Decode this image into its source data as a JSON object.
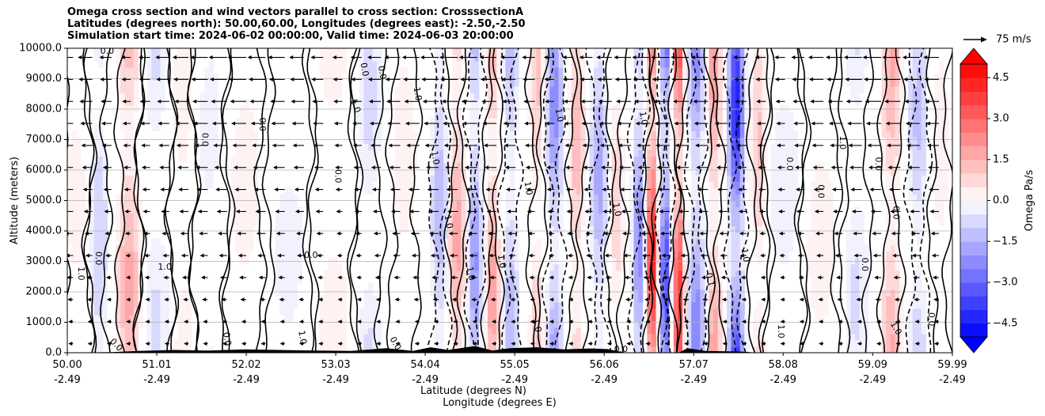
{
  "chart_data": {
    "type": "heatmap",
    "title_lines": [
      "Omega cross section and wind vectors parallel to cross section: CrosssectionA",
      "Latitudes (degrees north): 50.00,60.00, Longitudes (degrees east): -2.50,-2.50",
      "Simulation start time: 2024-06-02 00:00:00, Valid time: 2024-06-03 20:00:00"
    ],
    "ylabel": "Altitude (meters)",
    "xlabel_lines": [
      "Latitude (degrees N)",
      "Longitude (degrees E)"
    ],
    "xlim": [
      50.0,
      59.99
    ],
    "ylim": [
      0,
      10000
    ],
    "yticks": [
      {
        "value": 0,
        "label": "0.0"
      },
      {
        "value": 1000,
        "label": "1000.0"
      },
      {
        "value": 2000,
        "label": "2000.0"
      },
      {
        "value": 3000,
        "label": "3000.0"
      },
      {
        "value": 4000,
        "label": "4000.0"
      },
      {
        "value": 5000,
        "label": "5000.0"
      },
      {
        "value": 6000,
        "label": "6000.0"
      },
      {
        "value": 7000,
        "label": "7000.0"
      },
      {
        "value": 8000,
        "label": "8000.0"
      },
      {
        "value": 9000,
        "label": "9000.0"
      },
      {
        "value": 10000,
        "label": "10000.0"
      }
    ],
    "xticks": [
      {
        "value": 50.0,
        "lat": "50.00",
        "lon": "-2.49"
      },
      {
        "value": 51.01,
        "lat": "51.01",
        "lon": "-2.49"
      },
      {
        "value": 52.02,
        "lat": "52.02",
        "lon": "-2.49"
      },
      {
        "value": 53.03,
        "lat": "53.03",
        "lon": "-2.49"
      },
      {
        "value": 54.04,
        "lat": "54.04",
        "lon": "-2.49"
      },
      {
        "value": 55.05,
        "lat": "55.05",
        "lon": "-2.49"
      },
      {
        "value": 56.06,
        "lat": "56.06",
        "lon": "-2.49"
      },
      {
        "value": 57.07,
        "lat": "57.07",
        "lon": "-2.49"
      },
      {
        "value": 58.08,
        "lat": "58.08",
        "lon": "-2.49"
      },
      {
        "value": 59.09,
        "lat": "59.09",
        "lon": "-2.49"
      },
      {
        "value": 59.99,
        "lat": "59.99",
        "lon": "-2.49"
      }
    ],
    "grid": true,
    "colorbar": {
      "label": "Omega Pa/s",
      "range": [
        -5.0,
        5.0
      ],
      "ticks": [
        {
          "value": 4.5,
          "label": "4.5"
        },
        {
          "value": 3.0,
          "label": "3.0"
        },
        {
          "value": 1.5,
          "label": "1.5"
        },
        {
          "value": 0.0,
          "label": "0.0"
        },
        {
          "value": -1.5,
          "label": "−1.5"
        },
        {
          "value": -3.0,
          "label": "−3.0"
        },
        {
          "value": -4.5,
          "label": "−4.5"
        }
      ],
      "levels": 20,
      "extend": "both",
      "colormap": "bwr",
      "neg_color": "#0000ff",
      "pos_color": "#ff0000",
      "mid_color": "#ffffff"
    },
    "quiver_key": {
      "label": "75 m/s",
      "value": 75
    },
    "omega_bands": [
      {
        "lat": 50.1,
        "value": 0.4,
        "width": 0.15
      },
      {
        "lat": 50.35,
        "value": -1.0,
        "width": 0.1
      },
      {
        "lat": 50.7,
        "value": 1.8,
        "width": 0.12
      },
      {
        "lat": 51.0,
        "value": -0.6,
        "width": 0.2
      },
      {
        "lat": 51.3,
        "value": 0.6,
        "width": 0.15
      },
      {
        "lat": 51.6,
        "value": -0.4,
        "width": 0.2
      },
      {
        "lat": 52.0,
        "value": 0.5,
        "width": 0.2
      },
      {
        "lat": 52.5,
        "value": -0.4,
        "width": 0.25
      },
      {
        "lat": 53.0,
        "value": 0.4,
        "width": 0.25
      },
      {
        "lat": 53.4,
        "value": -0.7,
        "width": 0.15
      },
      {
        "lat": 53.8,
        "value": 0.5,
        "width": 0.15
      },
      {
        "lat": 54.2,
        "value": -1.5,
        "width": 0.08
      },
      {
        "lat": 54.4,
        "value": 1.8,
        "width": 0.08
      },
      {
        "lat": 54.6,
        "value": -2.2,
        "width": 0.07
      },
      {
        "lat": 54.8,
        "value": 2.0,
        "width": 0.07
      },
      {
        "lat": 55.0,
        "value": -1.4,
        "width": 0.08
      },
      {
        "lat": 55.3,
        "value": 1.2,
        "width": 0.07
      },
      {
        "lat": 55.5,
        "value": -2.4,
        "width": 0.08
      },
      {
        "lat": 55.75,
        "value": 1.5,
        "width": 0.07
      },
      {
        "lat": 56.0,
        "value": -1.8,
        "width": 0.08
      },
      {
        "lat": 56.2,
        "value": 0.8,
        "width": 0.08
      },
      {
        "lat": 56.45,
        "value": -2.5,
        "width": 0.06
      },
      {
        "lat": 56.6,
        "value": 5.0,
        "width": 0.05
      },
      {
        "lat": 56.75,
        "value": -4.0,
        "width": 0.05
      },
      {
        "lat": 56.9,
        "value": 4.5,
        "width": 0.05
      },
      {
        "lat": 57.1,
        "value": -2.5,
        "width": 0.08
      },
      {
        "lat": 57.3,
        "value": 2.0,
        "width": 0.07
      },
      {
        "lat": 57.55,
        "value": -4.5,
        "width": 0.08
      },
      {
        "lat": 57.8,
        "value": 1.2,
        "width": 0.08
      },
      {
        "lat": 58.1,
        "value": -0.5,
        "width": 0.2
      },
      {
        "lat": 58.5,
        "value": 0.5,
        "width": 0.2
      },
      {
        "lat": 58.9,
        "value": -0.6,
        "width": 0.15
      },
      {
        "lat": 59.3,
        "value": 1.6,
        "width": 0.1
      },
      {
        "lat": 59.6,
        "value": -1.2,
        "width": 0.1
      },
      {
        "lat": 59.85,
        "value": 0.5,
        "width": 0.1
      }
    ],
    "contour_labels": [
      {
        "lat": 50.45,
        "alt": 9900,
        "text": "0.0",
        "rot": 0
      },
      {
        "lat": 51.1,
        "alt": 2800,
        "text": "1.0",
        "rot": 0
      },
      {
        "lat": 52.75,
        "alt": 3200,
        "text": "0.0",
        "rot": 0
      },
      {
        "lat": 50.15,
        "alt": 2600,
        "text": "1.0",
        "rot": 90
      },
      {
        "lat": 50.35,
        "alt": 3100,
        "text": "0.0",
        "rot": 90
      },
      {
        "lat": 51.55,
        "alt": 7000,
        "text": "0.0",
        "rot": 90
      },
      {
        "lat": 52.2,
        "alt": 7500,
        "text": "0.0",
        "rot": 90
      },
      {
        "lat": 53.05,
        "alt": 5800,
        "text": "0.0",
        "rot": 90
      },
      {
        "lat": 53.25,
        "alt": 8100,
        "text": "1.0",
        "rot": 70
      },
      {
        "lat": 53.35,
        "alt": 9300,
        "text": "0.0",
        "rot": 80
      },
      {
        "lat": 53.55,
        "alt": 9200,
        "text": "0.0",
        "rot": 80
      },
      {
        "lat": 53.95,
        "alt": 8500,
        "text": "1.0",
        "rot": 80
      },
      {
        "lat": 54.15,
        "alt": 6400,
        "text": "1.0",
        "rot": 80
      },
      {
        "lat": 54.3,
        "alt": 4300,
        "text": "1.0",
        "rot": 80
      },
      {
        "lat": 54.55,
        "alt": 2600,
        "text": "1.0",
        "rot": 80
      },
      {
        "lat": 54.9,
        "alt": 3000,
        "text": "1.0",
        "rot": 80
      },
      {
        "lat": 55.2,
        "alt": 5400,
        "text": "1.0",
        "rot": 80
      },
      {
        "lat": 55.55,
        "alt": 7800,
        "text": "1.0",
        "rot": 80
      },
      {
        "lat": 56.2,
        "alt": 4700,
        "text": "1.0",
        "rot": 80
      },
      {
        "lat": 56.5,
        "alt": 7700,
        "text": "1.0",
        "rot": 80
      },
      {
        "lat": 57.25,
        "alt": 2400,
        "text": "0.1",
        "rot": 80
      },
      {
        "lat": 57.65,
        "alt": 3200,
        "text": "1.0",
        "rot": 80
      },
      {
        "lat": 58.15,
        "alt": 6200,
        "text": "0.0",
        "rot": 90
      },
      {
        "lat": 58.5,
        "alt": 5300,
        "text": "0.0",
        "rot": 90
      },
      {
        "lat": 58.75,
        "alt": 6900,
        "text": "1.0",
        "rot": 90
      },
      {
        "lat": 59.15,
        "alt": 6200,
        "text": "0.0",
        "rot": 90
      },
      {
        "lat": 59.35,
        "alt": 4600,
        "text": "0.0",
        "rot": 90
      },
      {
        "lat": 59.0,
        "alt": 2900,
        "text": "0.0",
        "rot": 90
      },
      {
        "lat": 59.75,
        "alt": 1100,
        "text": "0.0",
        "rot": 90
      },
      {
        "lat": 50.55,
        "alt": 250,
        "text": "0.0",
        "rot": 45
      },
      {
        "lat": 51.8,
        "alt": 450,
        "text": "0.0",
        "rot": 80
      },
      {
        "lat": 52.65,
        "alt": 500,
        "text": "1.0",
        "rot": 80
      },
      {
        "lat": 53.7,
        "alt": 300,
        "text": "0.0",
        "rot": 60
      },
      {
        "lat": 55.3,
        "alt": 900,
        "text": "1.0",
        "rot": 80
      },
      {
        "lat": 56.25,
        "alt": 100,
        "text": "0.0",
        "rot": 0
      },
      {
        "lat": 58.05,
        "alt": 700,
        "text": "1.0",
        "rot": 90
      },
      {
        "lat": 59.35,
        "alt": 800,
        "text": "1.0",
        "rot": 60
      }
    ]
  }
}
